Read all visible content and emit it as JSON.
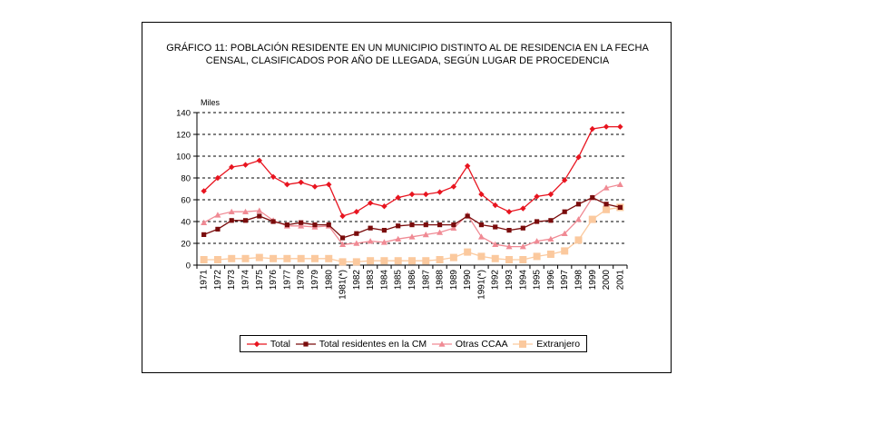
{
  "chart_data": {
    "type": "line",
    "title_lines": [
      "GRÁFICO 11: POBLACIÓN RESIDENTE EN UN MUNICIPIO DISTINTO AL DE RESIDENCIA EN LA FECHA",
      "CENSAL, CLASIFICADOS POR AÑO DE LLEGADA, SEGÚN LUGAR DE PROCEDENCIA"
    ],
    "ylabel": "Miles",
    "ylim": [
      0,
      140
    ],
    "yticks": [
      0,
      20,
      40,
      60,
      80,
      100,
      120,
      140
    ],
    "grid": true,
    "legend_position": "bottom",
    "categories": [
      "1971",
      "1972",
      "1973",
      "1974",
      "1975",
      "1976",
      "1977",
      "1978",
      "1979",
      "1980",
      "1981(*)",
      "1982",
      "1983",
      "1984",
      "1985",
      "1986",
      "1987",
      "1988",
      "1989",
      "1990",
      "1991(*)",
      "1992",
      "1993",
      "1994",
      "1995",
      "1996",
      "1997",
      "1998",
      "1999",
      "2000",
      "2001"
    ],
    "series": [
      {
        "name": "Total",
        "color": "#e8141f",
        "marker": "diamond",
        "values": [
          68,
          80,
          90,
          92,
          96,
          81,
          74,
          76,
          72,
          74,
          45,
          49,
          57,
          54,
          62,
          65,
          65,
          67,
          72,
          91,
          65,
          55,
          49,
          52,
          63,
          65,
          78,
          99,
          125,
          127,
          127
        ]
      },
      {
        "name": "Total residentes en la CM",
        "color": "#7a0c0c",
        "marker": "square",
        "values": [
          28,
          33,
          41,
          41,
          45,
          40,
          37,
          39,
          37,
          37,
          25,
          29,
          34,
          32,
          36,
          37,
          37,
          37,
          37,
          45,
          37,
          35,
          32,
          34,
          40,
          41,
          49,
          56,
          62,
          56,
          53
        ]
      },
      {
        "name": "Otras CCAA",
        "color": "#f08a94",
        "marker": "triangle",
        "values": [
          39,
          46,
          49,
          49,
          50,
          41,
          36,
          36,
          35,
          36,
          19,
          20,
          22,
          21,
          24,
          26,
          28,
          30,
          34,
          46,
          26,
          19,
          17,
          17,
          22,
          24,
          29,
          42,
          62,
          71,
          74
        ]
      },
      {
        "name": "Extranjero",
        "color": "#fbc99e",
        "marker": "square",
        "values": [
          5,
          5,
          6,
          6,
          7,
          6,
          6,
          6,
          6,
          6,
          3,
          3,
          4,
          4,
          4,
          4,
          4,
          5,
          7,
          12,
          8,
          6,
          5,
          5,
          8,
          10,
          13,
          23,
          42,
          51,
          53
        ]
      }
    ]
  }
}
